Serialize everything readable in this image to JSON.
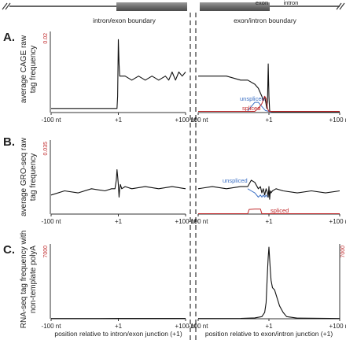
{
  "diagram": {
    "left_label": "intron/exon boundary",
    "right_label": "exon/intron boundary",
    "exon_label": "exon",
    "intron_label": "intron"
  },
  "chart_data": [
    {
      "type": "line",
      "panel": "A.",
      "ylabel": "average CAGE raw tag frequency",
      "ymax_label": "0.02",
      "left": {
        "x_ticks": [
          "-100 nt",
          "+1",
          "+100 nt"
        ],
        "series": [
          {
            "name": "",
            "color": "#111111",
            "x": [
              -100,
              -60,
              -40,
              -20,
              -10,
              -5,
              -3,
              -2,
              -1,
              0,
              1,
              2,
              3,
              4,
              6,
              10,
              20,
              30,
              40,
              50,
              60,
              70,
              75,
              80,
              85,
              90,
              95,
              100
            ],
            "y": [
              0.001,
              0.001,
              0.001,
              0.001,
              0.001,
              0.001,
              0.001,
              0.001,
              0.004,
              0.018,
              0.012,
              0.009,
              0.009,
              0.009,
              0.009,
              0.009,
              0.008,
              0.009,
              0.008,
              0.009,
              0.008,
              0.009,
              0.008,
              0.01,
              0.008,
              0.01,
              0.009,
              0.01
            ]
          }
        ]
      },
      "right": {
        "x_ticks": [
          "-100 nt",
          "+1",
          "+100 nt"
        ],
        "series": [
          {
            "name": "",
            "color": "#111111",
            "x": [
              -100,
              -80,
              -60,
              -40,
              -30,
              -20,
              -15,
              -10,
              -8,
              -6,
              -4,
              -3,
              -2,
              -1,
              0,
              1,
              2,
              4,
              8,
              20,
              50,
              100
            ],
            "y": [
              0.009,
              0.009,
              0.009,
              0.008,
              0.008,
              0.007,
              0.006,
              0.004,
              0.003,
              0.004,
              0.002,
              0.001,
              0.003,
              0.012,
              0.004,
              0.0005,
              0.0002,
              0.0002,
              0.0002,
              0.0002,
              0.0002,
              0.0002
            ]
          },
          {
            "name": "unspliced",
            "color": "#3b6fc4",
            "x": [
              -30,
              -25,
              -20,
              -15,
              -10,
              -5,
              0,
              3
            ],
            "y": [
              0.0004,
              0.0015,
              0.0025,
              0.0025,
              0.0015,
              0.0005,
              0.0003,
              0.0001
            ]
          },
          {
            "name": "spliced",
            "color": "#c0282a",
            "x": [
              -100,
              -20,
              -15,
              -10,
              -6,
              -4,
              -2,
              0,
              20,
              100
            ],
            "y": [
              0.0003,
              0.0003,
              0.001,
              0.0022,
              0.004,
              0.0035,
              0.001,
              0.0003,
              0.0003,
              0.0003
            ]
          }
        ]
      }
    },
    {
      "type": "line",
      "panel": "B.",
      "ylabel": "average GRO-seq raw tag frequency",
      "ymax_label": "0.035",
      "left": {
        "x_ticks": [
          "-100 nt",
          "+1",
          "+100 nt"
        ],
        "series": [
          {
            "name": "",
            "color": "#111111",
            "x": [
              -100,
              -80,
              -60,
              -40,
              -20,
              -10,
              -5,
              -3,
              -2,
              -1,
              0,
              1,
              2,
              3,
              5,
              10,
              20,
              40,
              60,
              80,
              100
            ],
            "y": [
              0.009,
              0.011,
              0.01,
              0.012,
              0.011,
              0.012,
              0.012,
              0.016,
              0.021,
              0.018,
              0.014,
              0.008,
              0.012,
              0.014,
              0.012,
              0.013,
              0.012,
              0.013,
              0.012,
              0.013,
              0.012
            ]
          }
        ]
      },
      "right": {
        "x_ticks": [
          "-100 nt",
          "+1",
          "+100 nt"
        ],
        "series": [
          {
            "name": "",
            "color": "#111111",
            "x": [
              -100,
              -80,
              -60,
              -40,
              -30,
              -25,
              -20,
              -15,
              -12,
              -10,
              -8,
              -6,
              -4,
              -2,
              -1,
              0,
              1,
              2,
              3,
              5,
              10,
              20,
              40,
              60,
              80,
              100
            ],
            "y": [
              0.012,
              0.013,
              0.012,
              0.013,
              0.013,
              0.016,
              0.015,
              0.012,
              0.013,
              0.01,
              0.012,
              0.009,
              0.012,
              0.01,
              0.008,
              0.013,
              0.007,
              0.011,
              0.01,
              0.011,
              0.012,
              0.011,
              0.01,
              0.011,
              0.01,
              0.011
            ]
          },
          {
            "name": "unspliced",
            "color": "#3b6fc4",
            "x": [
              -30,
              -25,
              -20,
              -15,
              -12,
              -10,
              -8,
              -6,
              -4,
              -2
            ],
            "y": [
              0.012,
              0.011,
              0.01,
              0.008,
              0.009,
              0.008,
              0.009,
              0.008,
              0.009,
              0.008
            ]
          },
          {
            "name": "spliced",
            "color": "#c0282a",
            "x": [
              -100,
              -30,
              -28,
              -20,
              -12,
              -10,
              -8,
              100
            ],
            "y": [
              0.0002,
              0.0002,
              0.0022,
              0.0024,
              0.0024,
              0.0002,
              0.0002,
              0.0002
            ]
          }
        ]
      }
    },
    {
      "type": "line",
      "panel": "C.",
      "ylabel": "RNA-seq tag frequency with non-template polyA",
      "ymax_label": "7000",
      "right_ymax_label": "7000",
      "left": {
        "x_ticks": [
          "-100 nt",
          "+1",
          "+100 nt"
        ],
        "xlabel": "position relative to intron/exon junction (+1)",
        "series": [
          {
            "name": "",
            "color": "#111111",
            "x": [
              -100,
              -50,
              0,
              50,
              100
            ],
            "y": [
              20,
              20,
              30,
              30,
              40
            ]
          }
        ]
      },
      "right": {
        "x_ticks": [
          "-100 nt",
          "+1",
          "+100 nt"
        ],
        "xlabel": "position relative to exon/intron junction (+1)",
        "series": [
          {
            "name": "",
            "color": "#111111",
            "x": [
              -100,
              -40,
              -20,
              -10,
              -6,
              -4,
              -3,
              -2,
              -1,
              0,
              1,
              2,
              3,
              5,
              8,
              15,
              20,
              25,
              40,
              100
            ],
            "y": [
              20,
              40,
              80,
              200,
              600,
              1500,
              3000,
              4500,
              5800,
              6700,
              5600,
              4500,
              3600,
              2900,
              2700,
              1200,
              600,
              200,
              60,
              20
            ]
          }
        ]
      }
    }
  ]
}
